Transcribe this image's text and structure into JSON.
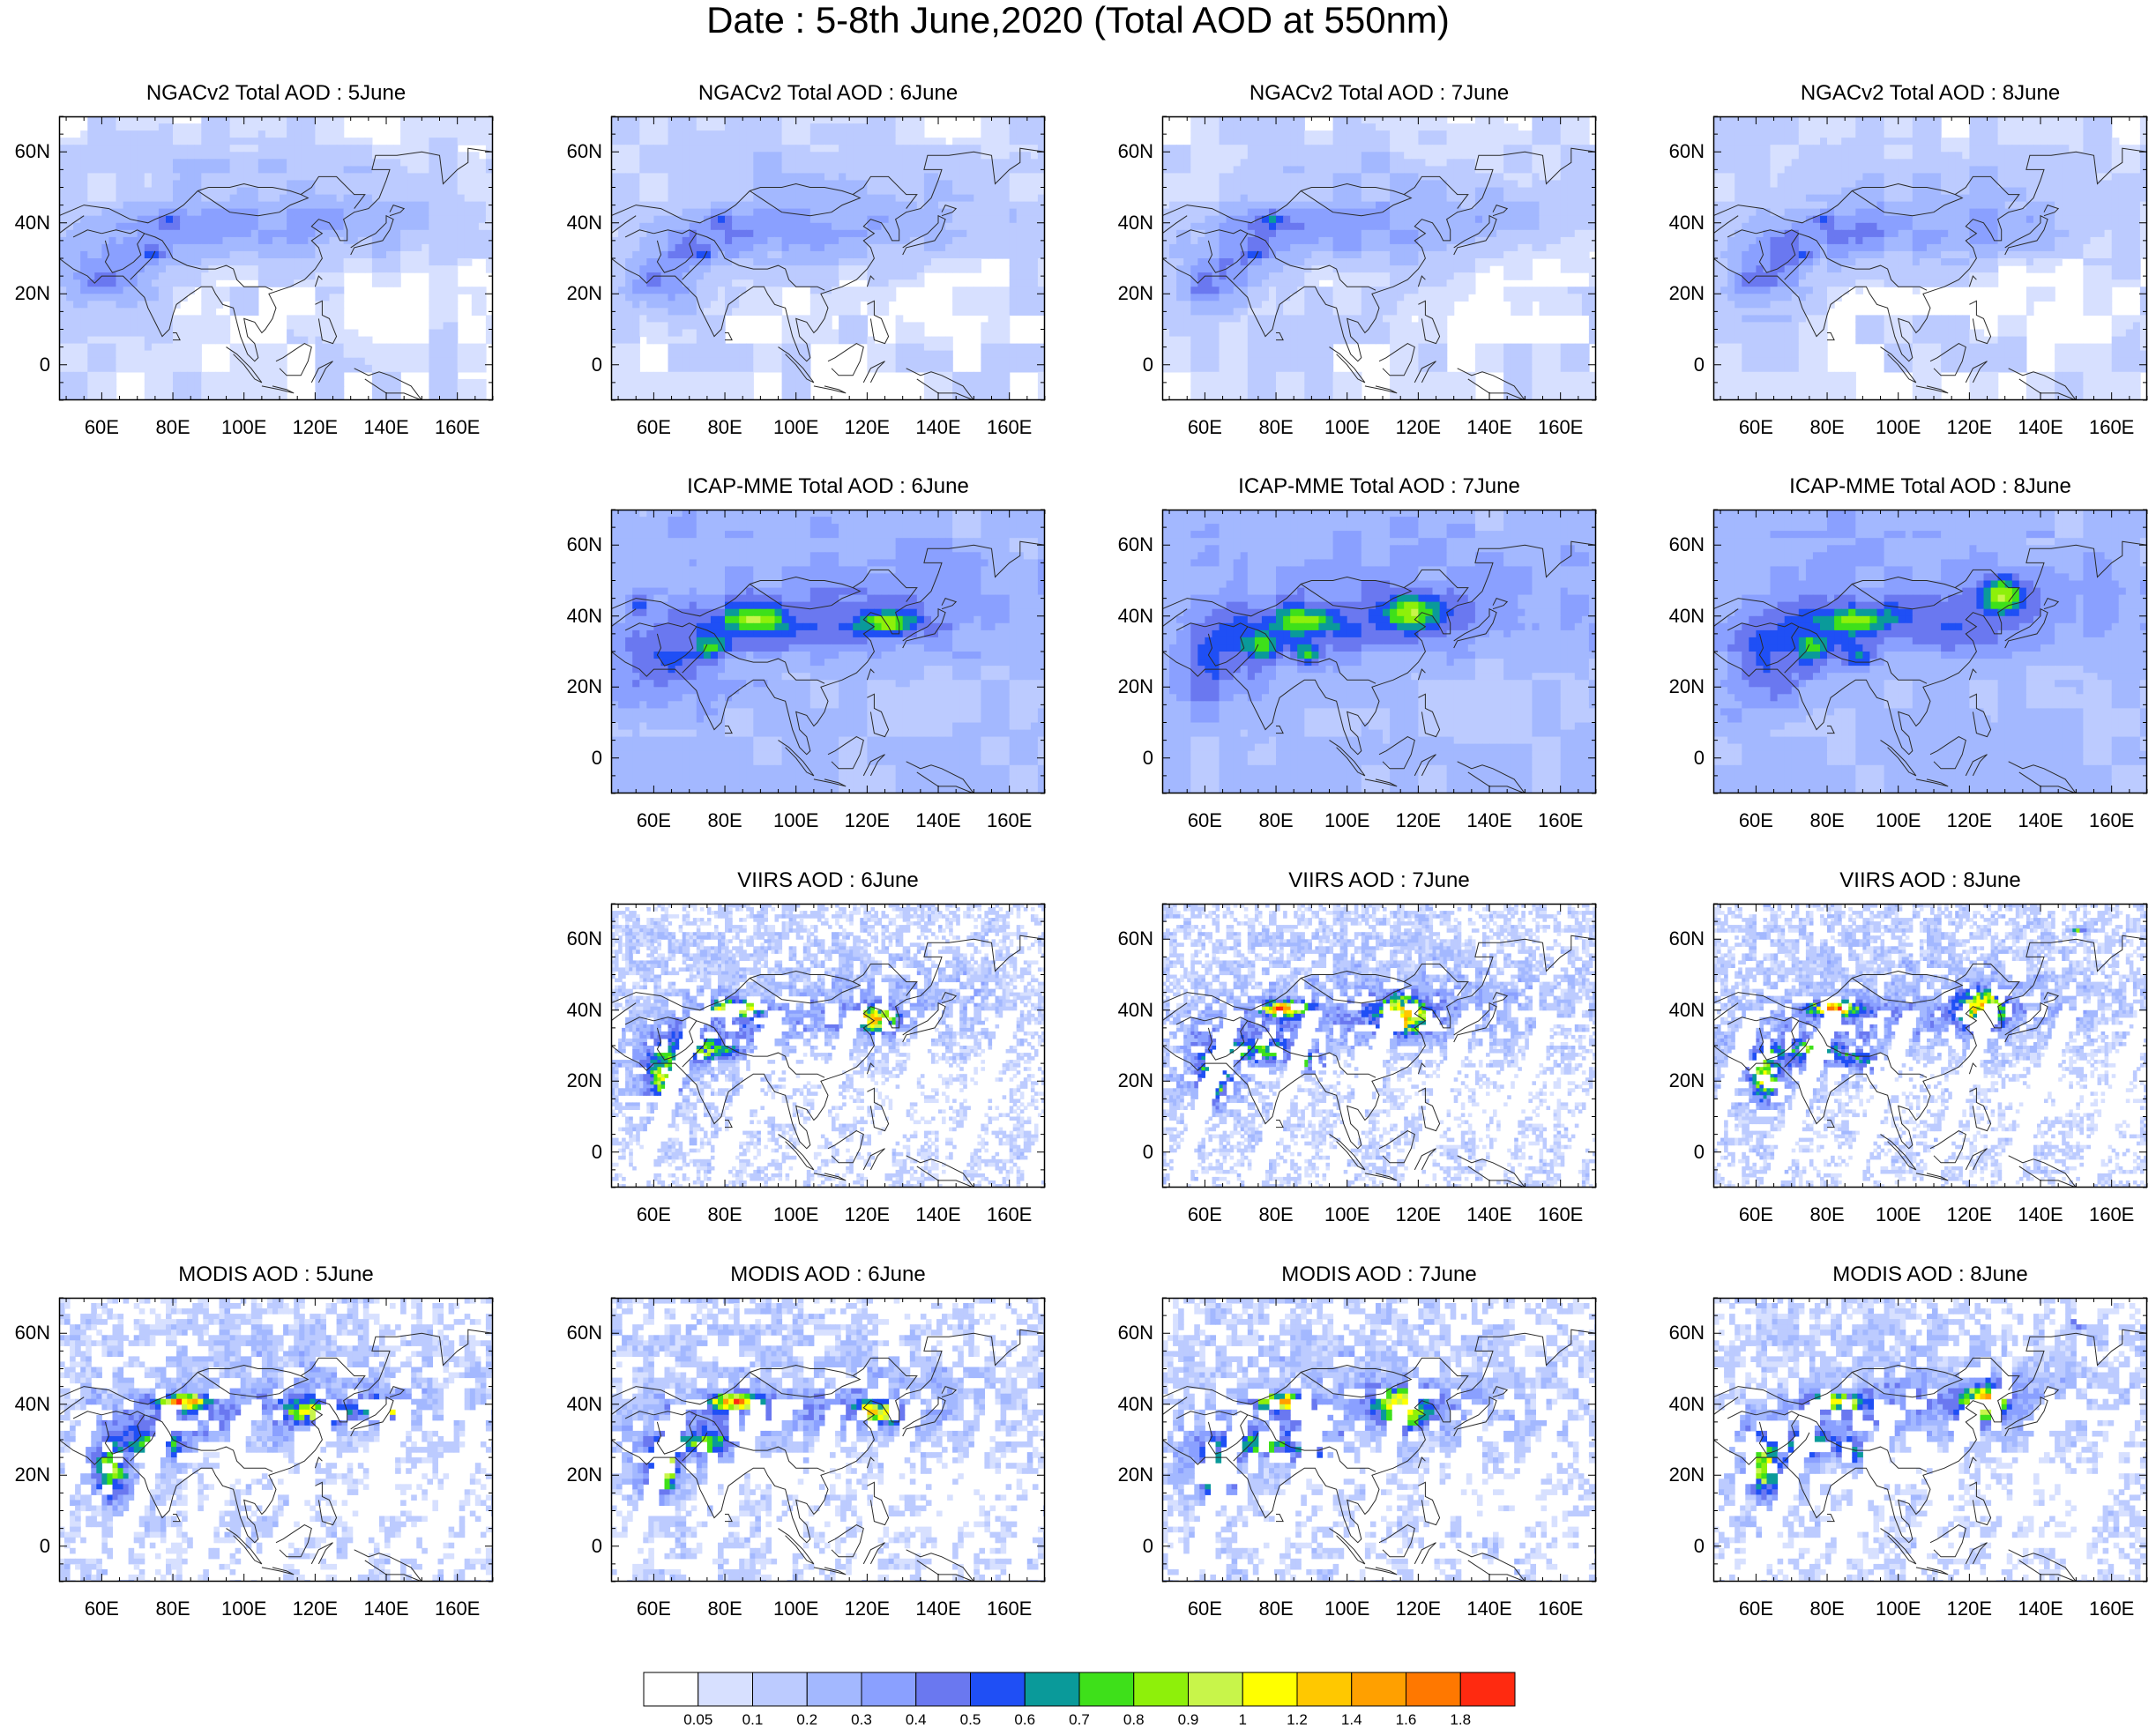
{
  "title": "Date : 5-8th June,2020 (Total AOD at 550nm)",
  "map_axes": {
    "lat_ticks": [
      "60N",
      "40N",
      "20N",
      "0"
    ],
    "lat_values": [
      60,
      40,
      20,
      0
    ],
    "lon_ticks": [
      "60E",
      "80E",
      "100E",
      "120E",
      "140E",
      "160E"
    ],
    "lon_values": [
      60,
      80,
      100,
      120,
      140,
      160
    ],
    "lon_range": [
      48,
      170
    ],
    "lat_range": [
      -10,
      70
    ]
  },
  "panels": [
    {
      "id": "ngac-5",
      "title": "NGACv2 Total AOD : 5June",
      "dataset": "NGACv2",
      "day": "5June"
    },
    {
      "id": "ngac-6",
      "title": "NGACv2 Total AOD : 6June",
      "dataset": "NGACv2",
      "day": "6June"
    },
    {
      "id": "ngac-7",
      "title": "NGACv2 Total AOD : 7June",
      "dataset": "NGACv2",
      "day": "7June"
    },
    {
      "id": "ngac-8",
      "title": "NGACv2 Total AOD : 8June",
      "dataset": "NGACv2",
      "day": "8June"
    },
    {
      "id": "icap-6",
      "title": "ICAP-MME Total AOD : 6June",
      "dataset": "ICAP-MME",
      "day": "6June"
    },
    {
      "id": "icap-7",
      "title": "ICAP-MME Total AOD : 7June",
      "dataset": "ICAP-MME",
      "day": "7June"
    },
    {
      "id": "icap-8",
      "title": "ICAP-MME Total AOD : 8June",
      "dataset": "ICAP-MME",
      "day": "8June"
    },
    {
      "id": "viirs-6",
      "title": "VIIRS AOD : 6June",
      "dataset": "VIIRS",
      "day": "6June"
    },
    {
      "id": "viirs-7",
      "title": "VIIRS AOD : 7June",
      "dataset": "VIIRS",
      "day": "7June"
    },
    {
      "id": "viirs-8",
      "title": "VIIRS AOD : 8June",
      "dataset": "VIIRS",
      "day": "8June"
    },
    {
      "id": "modis-5",
      "title": "MODIS AOD : 5June",
      "dataset": "MODIS",
      "day": "5June"
    },
    {
      "id": "modis-6",
      "title": "MODIS AOD : 6June",
      "dataset": "MODIS",
      "day": "6June"
    },
    {
      "id": "modis-7",
      "title": "MODIS AOD : 7June",
      "dataset": "MODIS",
      "day": "7June"
    },
    {
      "id": "modis-8",
      "title": "MODIS AOD : 8June",
      "dataset": "MODIS",
      "day": "8June"
    }
  ],
  "colorbar": {
    "labels": [
      "0.05",
      "0.1",
      "0.2",
      "0.3",
      "0.4",
      "0.5",
      "0.6",
      "0.7",
      "0.8",
      "0.9",
      "1",
      "1.2",
      "1.4",
      "1.6",
      "1.8"
    ],
    "colors": [
      "#ffffff",
      "#d7e0ff",
      "#bccbff",
      "#a3b8ff",
      "#8aa0ff",
      "#6a78f0",
      "#1f4ff5",
      "#0a9a9a",
      "#3ee01a",
      "#8ef00a",
      "#c8f54a",
      "#ffff00",
      "#ffc800",
      "#ffa000",
      "#ff7800",
      "#ff2a10"
    ]
  }
}
